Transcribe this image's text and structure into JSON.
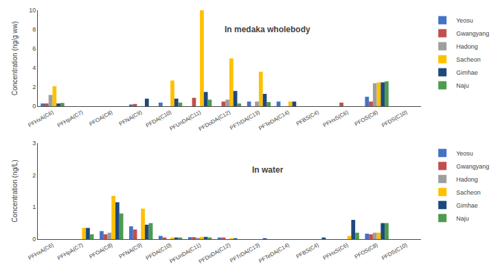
{
  "chart_data": [
    {
      "type": "bar",
      "categories": [
        "PFHxA(C6)",
        "PFHpA(C7)",
        "PFOA(C8)",
        "PFNA(C9)",
        "PFDA(C10)",
        "PFUnDA(C11)",
        "PFDoDA(C12)",
        "PFTrDA(C13)",
        "PFTeDA(C14)",
        "PFBS(C4)",
        "PFHxS(C6)",
        "PFOS(C8)",
        "PFDS(C10)"
      ],
      "series": [
        {
          "name": "Yeosu",
          "color": "#4472c4",
          "values": [
            0.3,
            0.0,
            0.0,
            0.2,
            0.4,
            0.0,
            0.0,
            0.5,
            0.5,
            0.0,
            0.0,
            1.0,
            0.0
          ]
        },
        {
          "name": "Gwangyang",
          "color": "#c0504d",
          "values": [
            0.3,
            0.0,
            0.0,
            0.25,
            0.0,
            0.9,
            0.5,
            0.0,
            0.0,
            0.0,
            0.4,
            0.5,
            0.0
          ]
        },
        {
          "name": "Hadong",
          "color": "#9e9e9e",
          "values": [
            1.2,
            0.0,
            0.0,
            0.0,
            0.0,
            0.0,
            0.7,
            0.5,
            0.0,
            0.0,
            0.0,
            2.4,
            0.0
          ]
        },
        {
          "name": "Sacheon",
          "color": "#ffc000",
          "values": [
            2.1,
            0.0,
            0.0,
            0.0,
            2.7,
            10.0,
            5.0,
            3.6,
            0.5,
            0.0,
            0.0,
            2.5,
            0.0
          ]
        },
        {
          "name": "Gimhae",
          "color": "#1f497d",
          "values": [
            0.3,
            0.0,
            0.0,
            0.8,
            0.8,
            1.5,
            1.6,
            1.3,
            0.5,
            0.0,
            0.0,
            2.5,
            0.0
          ]
        },
        {
          "name": "Naju",
          "color": "#4e9a51",
          "values": [
            0.35,
            0.0,
            0.0,
            0.0,
            0.4,
            0.7,
            0.3,
            0.45,
            0.0,
            0.0,
            0.0,
            2.6,
            0.0
          ]
        }
      ],
      "ylabel": "Concentration (ng/g ww)",
      "ylim": [
        0,
        10
      ],
      "yticks": [
        0,
        2,
        4,
        6,
        8,
        10
      ],
      "annotations": [
        "In medaka wholebody"
      ],
      "grid": false,
      "legend": "right"
    },
    {
      "type": "bar",
      "categories": [
        "PFHxA(C6)",
        "PFHpA(C7)",
        "PFOA(C8)",
        "PFNA(C9)",
        "PFDA(C10)",
        "PFUnDA(C11)",
        "PFDoDA(C12)",
        "PFTrDA(C13)",
        "PFTeDA(C14)",
        "PFBS(C4)",
        "PFHxS(C6)",
        "PFOS(C8)",
        "PFDS(C10)"
      ],
      "series": [
        {
          "name": "Yeosu",
          "color": "#4472c4",
          "values": [
            0.0,
            0.0,
            0.25,
            0.4,
            0.1,
            0.06,
            0.05,
            0.0,
            0.0,
            0.0,
            0.0,
            0.17,
            0.0
          ]
        },
        {
          "name": "Gwangyang",
          "color": "#c0504d",
          "values": [
            0.0,
            0.0,
            0.15,
            0.3,
            0.05,
            0.06,
            0.05,
            0.0,
            0.0,
            0.0,
            0.0,
            0.15,
            0.0
          ]
        },
        {
          "name": "Hadong",
          "color": "#9e9e9e",
          "values": [
            0.0,
            0.0,
            0.2,
            0.0,
            0.0,
            0.04,
            0.0,
            0.0,
            0.0,
            0.0,
            0.0,
            0.2,
            0.0
          ]
        },
        {
          "name": "Sacheon",
          "color": "#ffc000",
          "values": [
            0.0,
            0.35,
            1.35,
            0.95,
            0.05,
            0.07,
            0.02,
            0.0,
            0.0,
            0.0,
            0.1,
            0.2,
            0.0
          ]
        },
        {
          "name": "Gimhae",
          "color": "#1f497d",
          "values": [
            0.0,
            0.35,
            1.15,
            0.45,
            0.05,
            0.07,
            0.02,
            0.01,
            0.0,
            0.05,
            0.6,
            0.5,
            0.0
          ]
        },
        {
          "name": "Naju",
          "color": "#4e9a51",
          "values": [
            0.0,
            0.15,
            0.8,
            0.5,
            0.05,
            0.05,
            0.0,
            0.0,
            0.0,
            0.0,
            0.2,
            0.5,
            0.0
          ]
        }
      ],
      "ylabel": "Concentration (ng/L)",
      "ylim": [
        0,
        3
      ],
      "yticks": [
        0,
        1,
        2,
        3
      ],
      "annotations": [
        "In water"
      ],
      "grid": false,
      "legend": "right"
    }
  ]
}
